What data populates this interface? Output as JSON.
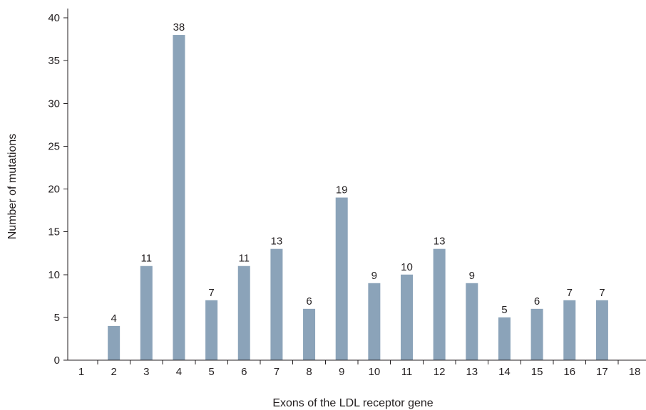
{
  "chart_data": {
    "type": "bar",
    "title": "",
    "xlabel": "Exons of the LDL receptor gene",
    "ylabel": "Number of mutations",
    "categories": [
      "1",
      "2",
      "3",
      "4",
      "5",
      "6",
      "7",
      "8",
      "9",
      "10",
      "11",
      "12",
      "13",
      "14",
      "15",
      "16",
      "17",
      "18"
    ],
    "values": [
      0,
      4,
      11,
      38,
      7,
      11,
      13,
      6,
      19,
      9,
      10,
      13,
      9,
      5,
      6,
      7,
      7,
      0
    ],
    "data_labels": [
      "",
      "4",
      "11",
      "38",
      "7",
      "11",
      "13",
      "6",
      "19",
      "9",
      "10",
      "13",
      "9",
      "5",
      "6",
      "7",
      "7",
      ""
    ],
    "yticks": [
      0,
      5,
      10,
      15,
      20,
      25,
      30,
      35,
      40
    ],
    "ylim": [
      0,
      40
    ],
    "grid": false,
    "legend": "none",
    "bar_color": "#8ba3b9",
    "axis_color": "#231f20"
  }
}
